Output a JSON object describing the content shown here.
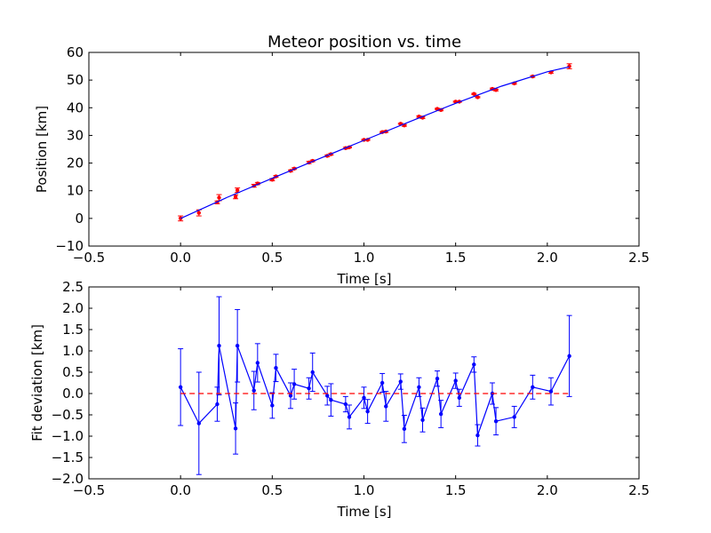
{
  "chart_data": [
    {
      "type": "scatter",
      "title": "Meteor position vs. time",
      "xlabel": "Time [s]",
      "ylabel": "Position [km]",
      "xlim": [
        -0.5,
        2.5
      ],
      "ylim": [
        -10,
        60
      ],
      "xticks": [
        "−0.5",
        "0.0",
        "0.5",
        "1.0",
        "1.5",
        "2.0",
        "2.5"
      ],
      "yticks": [
        "−10",
        "0",
        "10",
        "20",
        "30",
        "40",
        "50",
        "60"
      ],
      "grid": false,
      "series": [
        {
          "kind": "errorbar-points",
          "color": "#ff0000",
          "x": [
            0.0,
            0.1,
            0.2,
            0.21,
            0.3,
            0.31,
            0.4,
            0.42,
            0.5,
            0.52,
            0.6,
            0.62,
            0.7,
            0.72,
            0.8,
            0.82,
            0.9,
            0.92,
            1.0,
            1.02,
            1.1,
            1.12,
            1.2,
            1.22,
            1.3,
            1.32,
            1.4,
            1.42,
            1.5,
            1.52,
            1.6,
            1.62,
            1.7,
            1.72,
            1.82,
            1.92,
            2.02,
            2.12
          ],
          "y": [
            0.0,
            2.0,
            5.8,
            7.5,
            7.8,
            10.2,
            11.8,
            12.6,
            14.0,
            15.2,
            17.2,
            18.0,
            20.2,
            20.8,
            22.6,
            23.2,
            25.4,
            25.7,
            28.4,
            28.4,
            31.2,
            31.4,
            34.2,
            33.6,
            36.8,
            36.4,
            39.6,
            39.2,
            42.2,
            42.2,
            45.0,
            43.8,
            46.8,
            46.4,
            48.8,
            51.3,
            52.8,
            55.0
          ],
          "yerr": [
            0.9,
            1.1,
            0.5,
            1.1,
            0.7,
            0.8,
            0.5,
            0.4,
            0.4,
            0.3,
            0.3,
            0.3,
            0.4,
            0.3,
            0.3,
            0.3,
            0.3,
            0.2,
            0.2,
            0.2,
            0.2,
            0.3,
            0.2,
            0.3,
            0.3,
            0.3,
            0.2,
            0.3,
            0.2,
            0.2,
            0.2,
            0.2,
            0.3,
            0.3,
            0.3,
            0.3,
            0.3,
            0.9
          ]
        },
        {
          "kind": "fit-line",
          "color": "#0000ff",
          "x": [
            0.0,
            0.25,
            0.5,
            0.75,
            1.0,
            1.25,
            1.5,
            1.75,
            2.0,
            2.12
          ],
          "y": [
            0.0,
            7.5,
            14.5,
            21.4,
            28.2,
            35.0,
            41.6,
            47.8,
            53.0,
            54.8
          ]
        }
      ]
    },
    {
      "type": "line",
      "xlabel": "Time [s]",
      "ylabel": "Fit deviation [km]",
      "xlim": [
        -0.5,
        2.5
      ],
      "ylim": [
        -2.0,
        2.5
      ],
      "xticks": [
        "−0.5",
        "0.0",
        "0.5",
        "1.0",
        "1.5",
        "2.0",
        "2.5"
      ],
      "yticks": [
        "−2.0",
        "−1.5",
        "−1.0",
        "−0.5",
        "0.0",
        "0.5",
        "1.0",
        "1.5",
        "2.0",
        "2.5"
      ],
      "grid": false,
      "series": [
        {
          "kind": "errorbar-line",
          "color": "#0000ff",
          "x": [
            0.0,
            0.1,
            0.2,
            0.21,
            0.3,
            0.31,
            0.4,
            0.42,
            0.5,
            0.52,
            0.6,
            0.62,
            0.7,
            0.72,
            0.8,
            0.82,
            0.9,
            0.92,
            1.0,
            1.02,
            1.1,
            1.12,
            1.2,
            1.22,
            1.3,
            1.32,
            1.4,
            1.42,
            1.5,
            1.52,
            1.6,
            1.62,
            1.7,
            1.72,
            1.82,
            1.92,
            2.02,
            2.12
          ],
          "y": [
            0.15,
            -0.7,
            -0.25,
            1.12,
            -0.82,
            1.12,
            0.07,
            0.72,
            -0.28,
            0.6,
            -0.05,
            0.22,
            0.12,
            0.5,
            -0.05,
            -0.15,
            -0.25,
            -0.55,
            -0.1,
            -0.42,
            0.25,
            -0.3,
            0.28,
            -0.83,
            0.15,
            -0.62,
            0.35,
            -0.48,
            0.3,
            -0.1,
            0.68,
            -0.98,
            0.0,
            -0.65,
            -0.55,
            0.15,
            0.05,
            0.88
          ],
          "yerr": [
            0.9,
            1.2,
            0.4,
            1.15,
            0.6,
            0.85,
            0.45,
            0.45,
            0.3,
            0.32,
            0.3,
            0.35,
            0.25,
            0.45,
            0.22,
            0.38,
            0.18,
            0.28,
            0.25,
            0.28,
            0.22,
            0.35,
            0.18,
            0.32,
            0.22,
            0.28,
            0.18,
            0.32,
            0.18,
            0.2,
            0.18,
            0.25,
            0.25,
            0.32,
            0.25,
            0.28,
            0.32,
            0.95
          ]
        },
        {
          "kind": "reference-line",
          "color": "#ff0000",
          "x": [
            0.0,
            2.12
          ],
          "y": [
            0.0,
            0.0
          ]
        }
      ]
    }
  ]
}
